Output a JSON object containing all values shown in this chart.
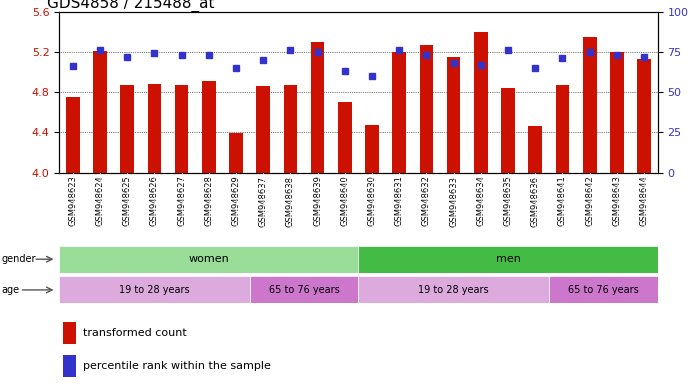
{
  "title": "GDS4858 / 215488_at",
  "samples": [
    "GSM948623",
    "GSM948624",
    "GSM948625",
    "GSM948626",
    "GSM948627",
    "GSM948628",
    "GSM948629",
    "GSM948637",
    "GSM948638",
    "GSM948639",
    "GSM948640",
    "GSM948630",
    "GSM948631",
    "GSM948632",
    "GSM948633",
    "GSM948634",
    "GSM948635",
    "GSM948636",
    "GSM948641",
    "GSM948642",
    "GSM948643",
    "GSM948644"
  ],
  "bar_values": [
    4.75,
    5.21,
    4.87,
    4.88,
    4.87,
    4.91,
    4.39,
    4.86,
    4.87,
    5.3,
    4.7,
    4.47,
    5.2,
    5.27,
    5.15,
    5.4,
    4.84,
    4.46,
    4.87,
    5.35,
    5.2,
    5.13
  ],
  "dot_values": [
    66,
    76,
    72,
    74,
    73,
    73,
    65,
    70,
    76,
    75,
    63,
    60,
    76,
    73,
    68,
    67,
    76,
    65,
    71,
    75,
    73,
    72
  ],
  "ylim_left": [
    4.0,
    5.6
  ],
  "ylim_right": [
    0,
    100
  ],
  "yticks_left": [
    4.0,
    4.4,
    4.8,
    5.2,
    5.6
  ],
  "yticks_right": [
    0,
    25,
    50,
    75,
    100
  ],
  "bar_color": "#cc1100",
  "dot_color": "#3333cc",
  "bg_color": "#ffffff",
  "plot_bg_color": "#ffffff",
  "women_color": "#99dd99",
  "men_color": "#44bb44",
  "age1_color": "#ddaadd",
  "age2_color": "#cc77cc",
  "legend_items": [
    {
      "label": "transformed count",
      "color": "#cc1100"
    },
    {
      "label": "percentile rank within the sample",
      "color": "#3333cc"
    }
  ],
  "title_fontsize": 11,
  "bar_width": 0.5,
  "n_women": 11,
  "n_men": 11,
  "n_women_young": 7,
  "n_women_old": 4,
  "n_men_young": 7,
  "n_men_old": 4
}
